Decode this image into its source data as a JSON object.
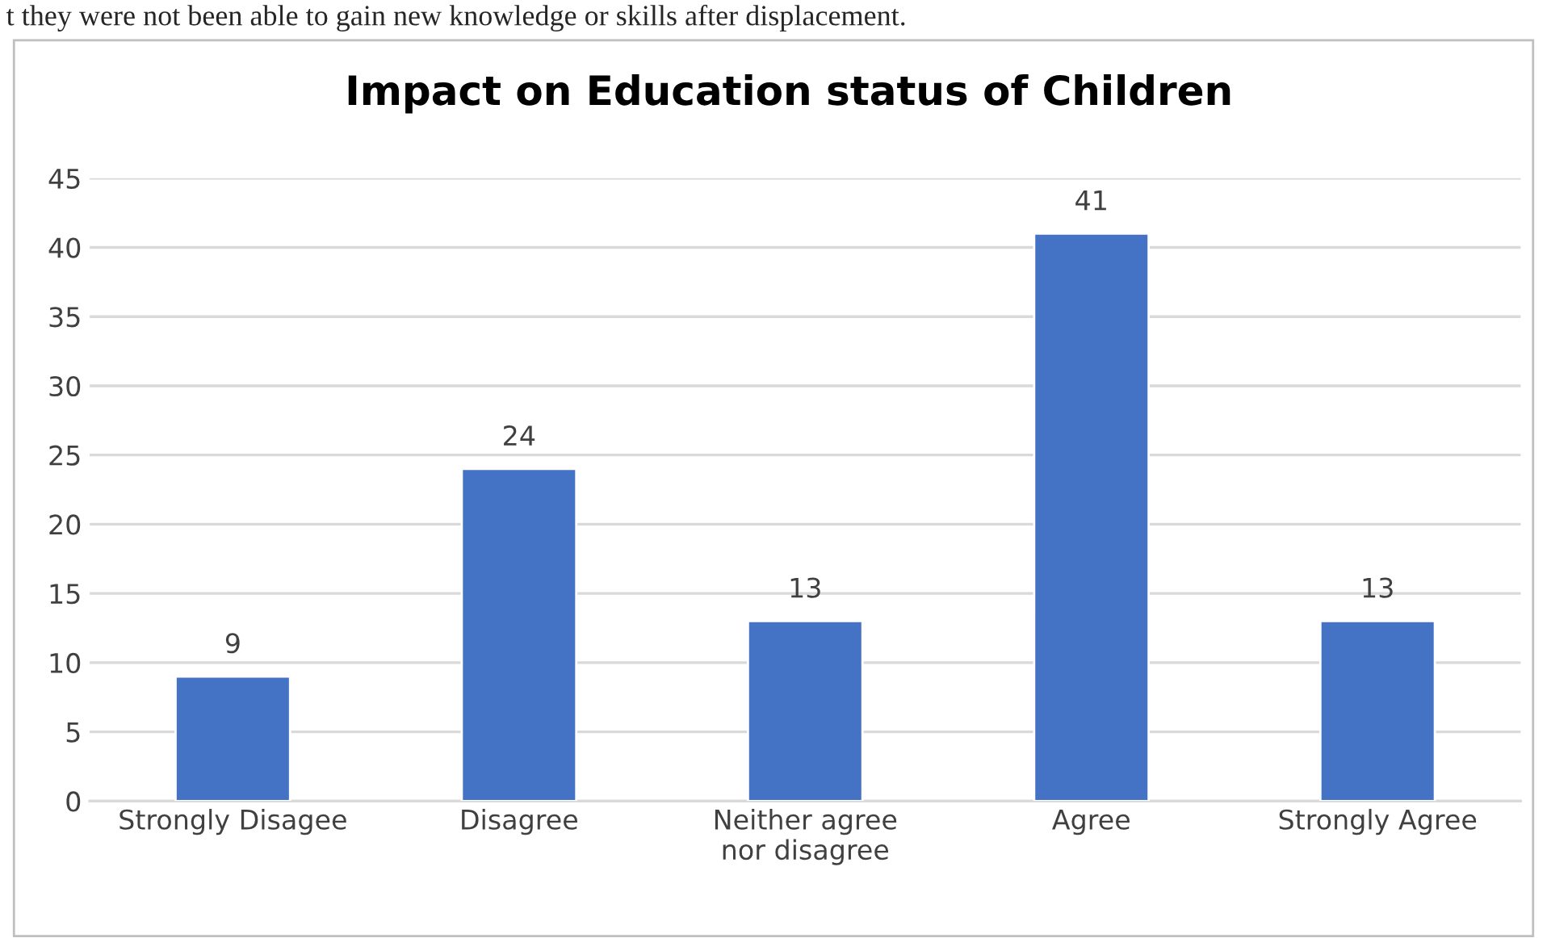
{
  "chart_data": {
    "type": "bar",
    "title": "Impact on Education status of Children",
    "categories": [
      "Strongly Disagee",
      "Disagree",
      "Neither agree nor disagree",
      "Agree",
      "Strongly Agree"
    ],
    "values": [
      9,
      24,
      13,
      41,
      13
    ],
    "color": "#4472c4",
    "ylim": [
      0,
      45
    ],
    "yticks": [
      0,
      5,
      10,
      15,
      20,
      25,
      30,
      35,
      40,
      45
    ],
    "grid": "y",
    "data_labels": true,
    "annotations": [
      "t they were not been able to gain new knowledge or skills after displacement."
    ]
  }
}
